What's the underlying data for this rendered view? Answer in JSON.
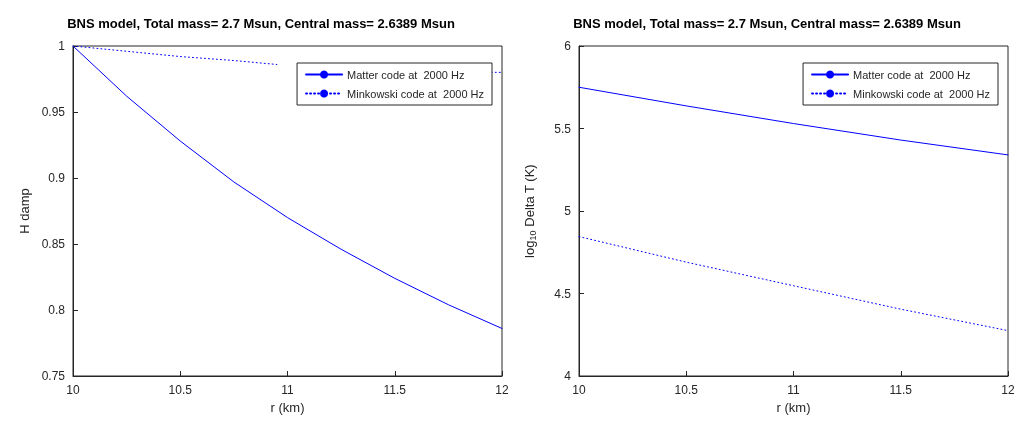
{
  "chart_data": [
    {
      "type": "line",
      "title": "BNS model, Total mass= 2.7 Msun, Central mass= 2.6389 Msun",
      "xlabel": "r (km)",
      "ylabel": "H damp",
      "xlim": [
        10,
        12
      ],
      "xticks": [
        10,
        10.5,
        11,
        11.5,
        12
      ],
      "ylim": [
        0.75,
        1
      ],
      "yticks": [
        0.75,
        0.8,
        0.85,
        0.9,
        0.95,
        1
      ],
      "grid": false,
      "legend": "top right",
      "series": [
        {
          "name": "Matter code at  2000 Hz",
          "color": "#0000ff",
          "line_style": "solid",
          "x": [
            10,
            10.25,
            10.5,
            10.75,
            11,
            11.25,
            11.5,
            11.75,
            12
          ],
          "values": [
            1,
            0.962,
            0.928,
            0.897,
            0.87,
            0.846,
            0.824,
            0.804,
            0.786
          ]
        },
        {
          "name": "Minkowski code at  2000 Hz",
          "color": "#0000ff",
          "line_style": "dotted",
          "x": [
            10,
            10.25,
            10.5,
            10.75,
            10.95,
            11.5,
            11.95,
            12
          ],
          "values": [
            1,
            0.996,
            0.992,
            0.989,
            0.986,
            null,
            0.9801,
            0.98
          ]
        }
      ]
    },
    {
      "type": "line",
      "title": "BNS model, Total mass= 2.7 Msun, Central mass= 2.6389 Msun",
      "xlabel": "r (km)",
      "ylabel": "log$_{10}$ Delta T (K)",
      "xlim": [
        10,
        12
      ],
      "xticks": [
        10,
        10.5,
        11,
        11.5,
        12
      ],
      "ylim": [
        4,
        6
      ],
      "yticks": [
        4,
        4.5,
        5,
        5.5,
        6
      ],
      "grid": false,
      "legend": "top right",
      "series": [
        {
          "name": "Matter code at  2000 Hz",
          "color": "#0000ff",
          "line_style": "solid",
          "x": [
            10,
            10.5,
            11,
            11.5,
            12
          ],
          "values": [
            5.75,
            5.637,
            5.53,
            5.43,
            5.34
          ]
        },
        {
          "name": "Minkowski code at  2000 Hz",
          "color": "#0000ff",
          "line_style": "dotted",
          "x": [
            10,
            10.5,
            11,
            11.5,
            12
          ],
          "values": [
            4.845,
            4.69,
            4.547,
            4.405,
            4.275
          ]
        }
      ]
    }
  ]
}
